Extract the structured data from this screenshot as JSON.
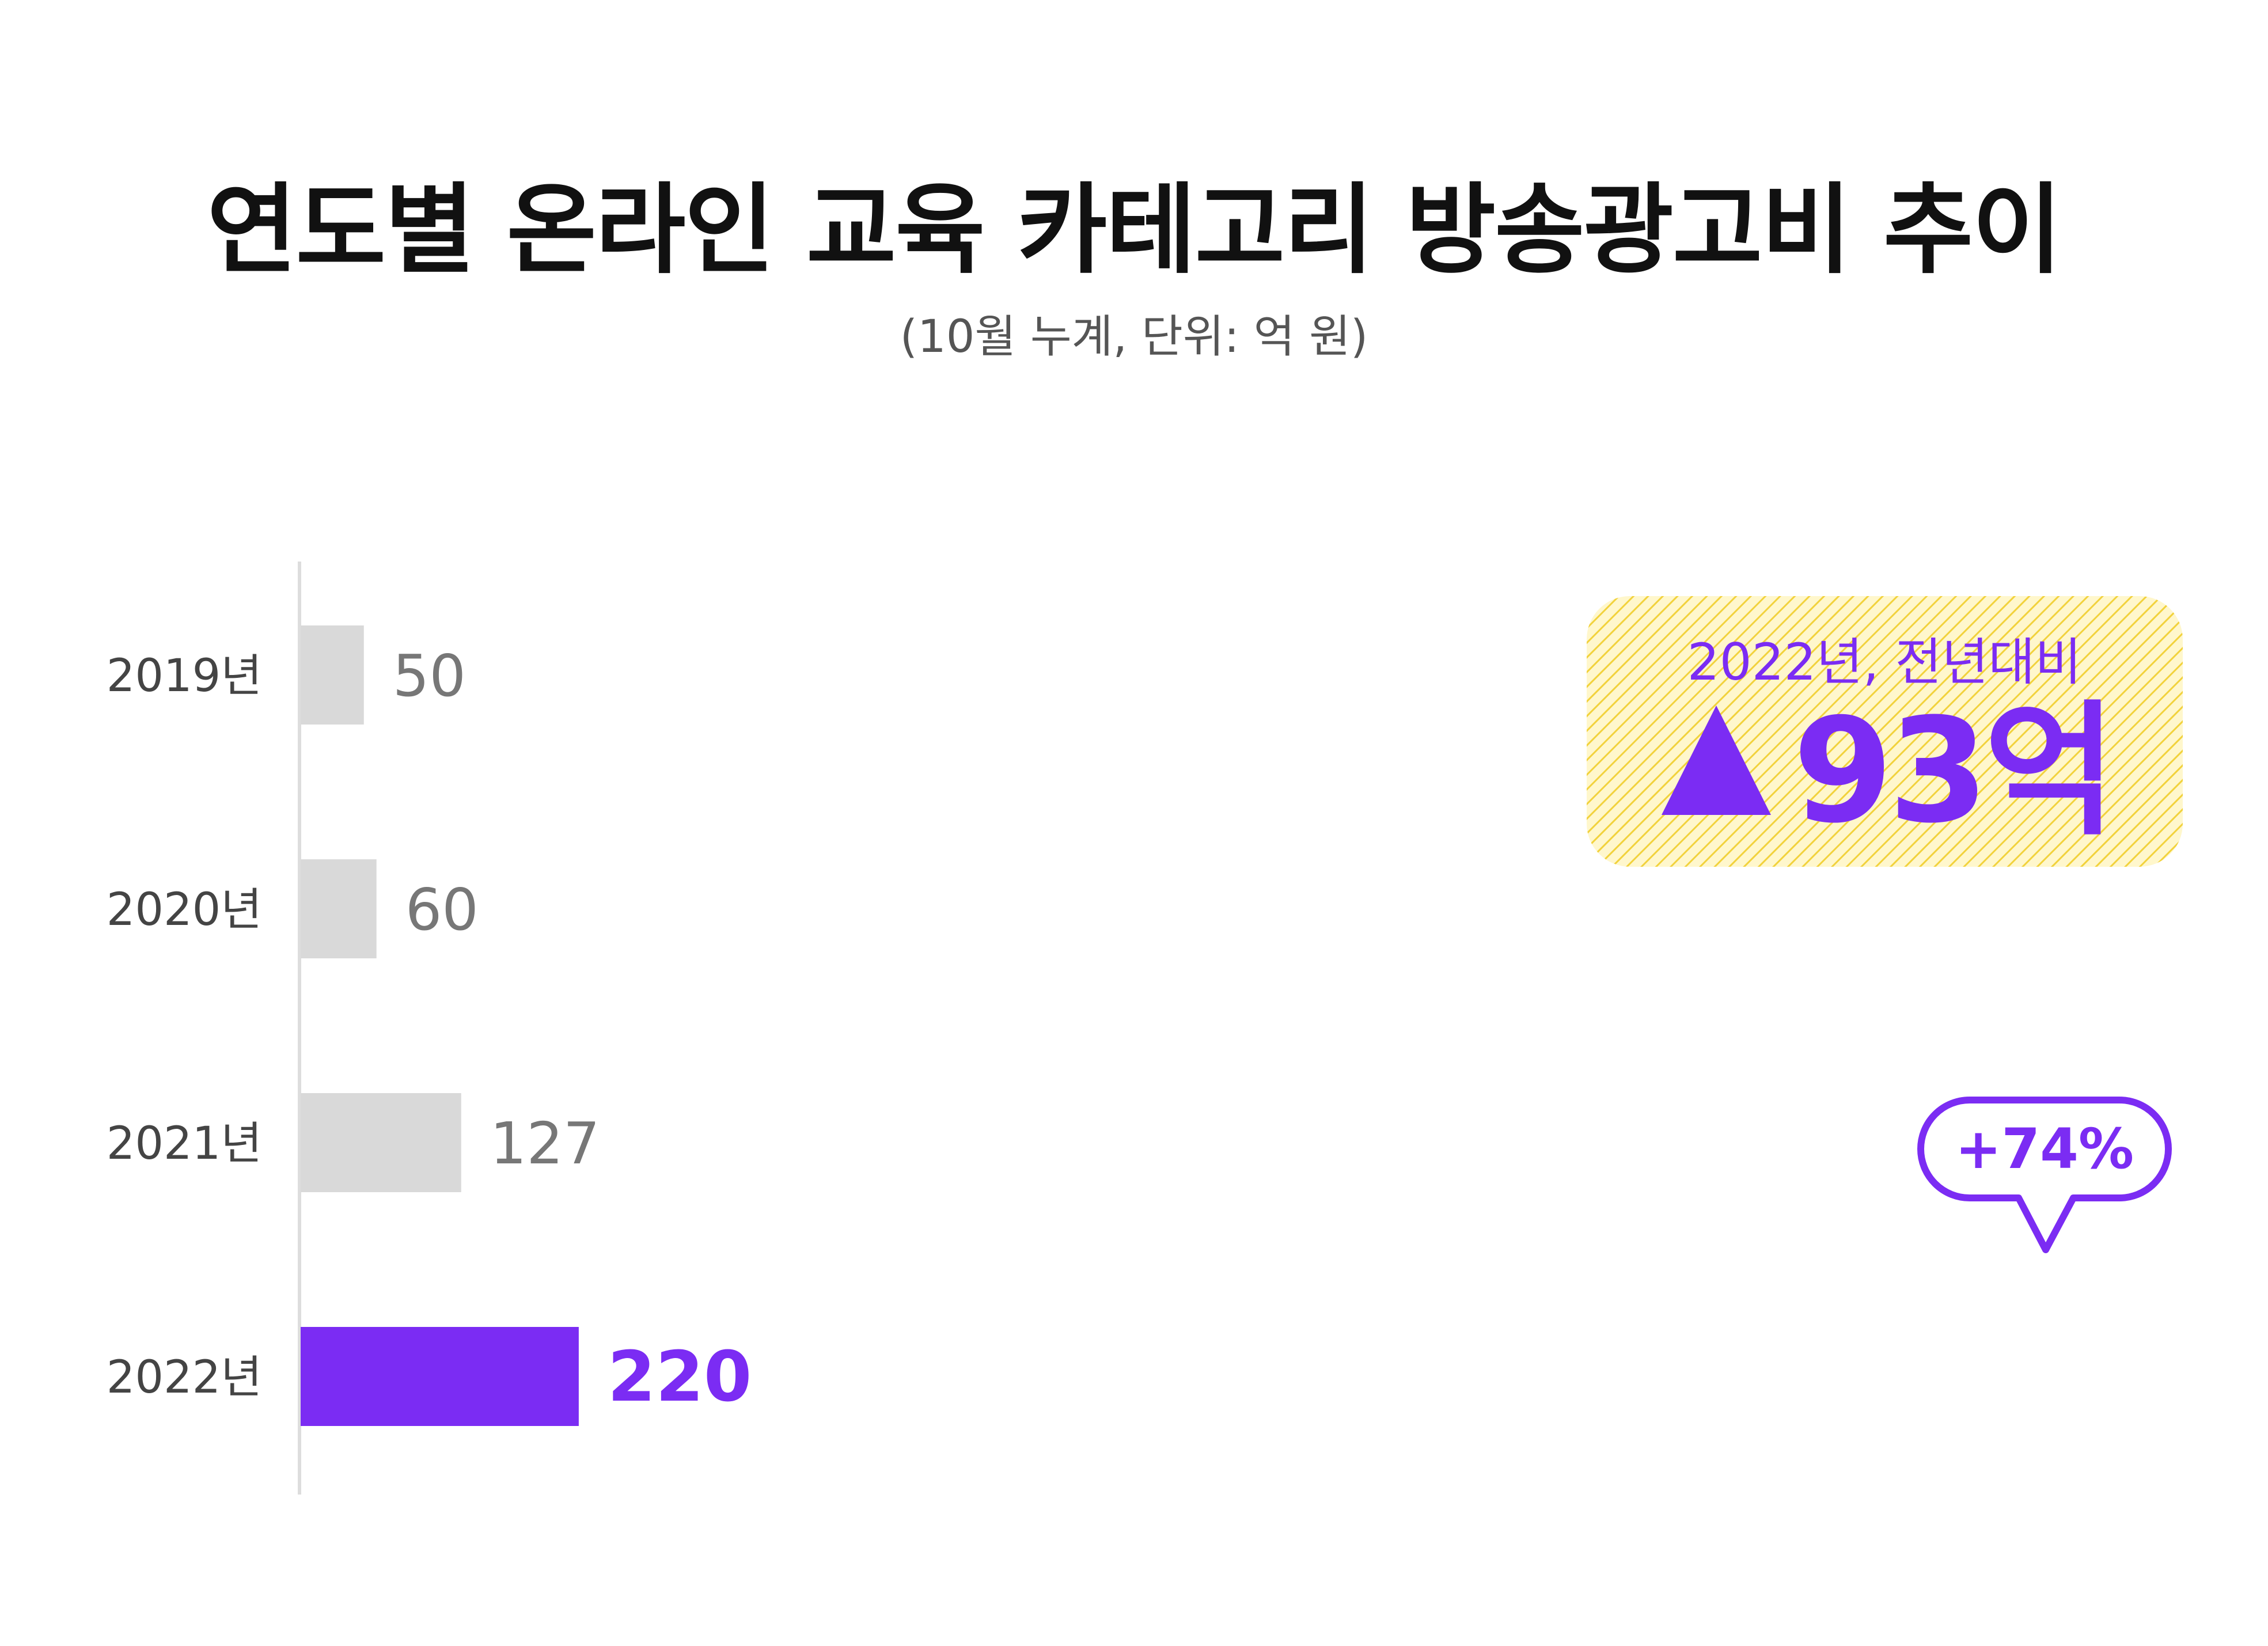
{
  "title": "연도별 온라인 교육 카테고리 방송광고비 추이",
  "subtitle": "(10월 누계, 단위: 억 원)",
  "callout": {
    "subtitle": "2022년, 전년대비",
    "value": "93억"
  },
  "bubble": {
    "text": "+74%"
  },
  "colors": {
    "highlight": "#7b2cf3",
    "bar": "#d9d9d9",
    "callout_bg": "#fff6c4",
    "callout_hatch": "#f5d84a"
  },
  "chart_data": {
    "type": "bar",
    "orientation": "horizontal",
    "categories": [
      "2019년",
      "2020년",
      "2021년",
      "2022년"
    ],
    "values": [
      50,
      60,
      127,
      220
    ],
    "value_labels": [
      "50",
      "60",
      "127",
      "220"
    ],
    "highlight_index": 3,
    "xlim": [
      0,
      240
    ]
  }
}
